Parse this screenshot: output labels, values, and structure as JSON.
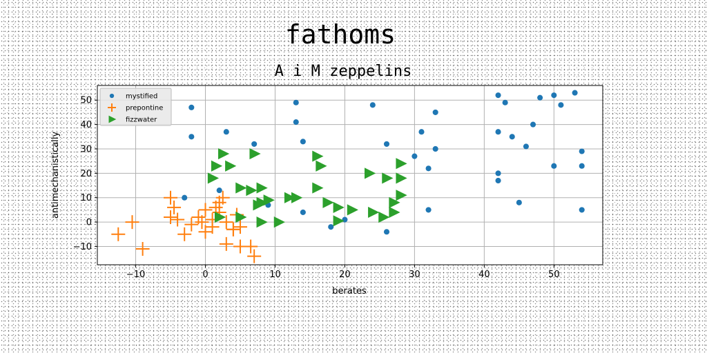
{
  "chart_data": {
    "type": "scatter",
    "title": "fathoms",
    "subtitle": "A i M zeppelins",
    "xlabel": "berates",
    "ylabel": "antimechanistically",
    "xlim": [
      -15.5,
      57
    ],
    "ylim": [
      -17.5,
      56
    ],
    "xticks": [
      -10,
      0,
      10,
      20,
      30,
      40,
      50
    ],
    "yticks": [
      -10,
      0,
      10,
      20,
      30,
      40,
      50
    ],
    "grid": true,
    "legend_position": "upper-left",
    "series": [
      {
        "name": "mystified",
        "marker": "circle",
        "color": "#1f77b4",
        "points": [
          [
            -2,
            47
          ],
          [
            -2,
            35
          ],
          [
            -3,
            10
          ],
          [
            3,
            37
          ],
          [
            2,
            13
          ],
          [
            7,
            32
          ],
          [
            13,
            49
          ],
          [
            13,
            41
          ],
          [
            14,
            33
          ],
          [
            14,
            4
          ],
          [
            18,
            -2
          ],
          [
            24,
            48
          ],
          [
            26,
            32
          ],
          [
            26,
            -4
          ],
          [
            30,
            27
          ],
          [
            31,
            37
          ],
          [
            33,
            45
          ],
          [
            33,
            30
          ],
          [
            32,
            22
          ],
          [
            32,
            5
          ],
          [
            42,
            52
          ],
          [
            43,
            49
          ],
          [
            42,
            37
          ],
          [
            42,
            20
          ],
          [
            42,
            17
          ],
          [
            44,
            35
          ],
          [
            46,
            31
          ],
          [
            47,
            40
          ],
          [
            48,
            51
          ],
          [
            50,
            52
          ],
          [
            51,
            48
          ],
          [
            53,
            53
          ],
          [
            54,
            29
          ],
          [
            54,
            23
          ],
          [
            50,
            23
          ],
          [
            45,
            8
          ],
          [
            54,
            5
          ],
          [
            20,
            1
          ],
          [
            9,
            7
          ]
        ]
      },
      {
        "name": "prepontine",
        "marker": "plus",
        "color": "#ff7f0e",
        "points": [
          [
            -12.5,
            -5
          ],
          [
            -10.5,
            0
          ],
          [
            -9,
            -11
          ],
          [
            -5,
            10
          ],
          [
            -4.5,
            6
          ],
          [
            -5,
            2
          ],
          [
            -4,
            1
          ],
          [
            -3,
            -5
          ],
          [
            -2,
            -1
          ],
          [
            -1,
            2
          ],
          [
            0,
            5
          ],
          [
            0,
            -4
          ],
          [
            1,
            1
          ],
          [
            1,
            -2
          ],
          [
            2,
            8
          ],
          [
            2.5,
            10
          ],
          [
            2,
            4
          ],
          [
            3,
            0
          ],
          [
            3,
            -9
          ],
          [
            4,
            -3
          ],
          [
            4.5,
            3
          ],
          [
            5,
            -2
          ],
          [
            5,
            -10
          ],
          [
            6.5,
            -10
          ],
          [
            7,
            -14
          ],
          [
            1.5,
            6
          ],
          [
            -0.5,
            0
          ],
          [
            4,
            -3
          ]
        ]
      },
      {
        "name": "fizzwater",
        "marker": "triangle-right",
        "color": "#2ca02c",
        "points": [
          [
            1,
            18
          ],
          [
            1.5,
            23
          ],
          [
            2.5,
            28
          ],
          [
            3.5,
            23
          ],
          [
            7,
            28
          ],
          [
            5,
            14
          ],
          [
            6.5,
            13
          ],
          [
            8,
            14
          ],
          [
            8,
            8
          ],
          [
            9,
            9
          ],
          [
            7.5,
            7
          ],
          [
            8,
            0
          ],
          [
            10.5,
            0
          ],
          [
            5,
            2
          ],
          [
            2,
            2
          ],
          [
            12,
            10
          ],
          [
            13,
            10
          ],
          [
            16,
            27
          ],
          [
            16.5,
            23
          ],
          [
            16,
            14
          ],
          [
            17.5,
            8
          ],
          [
            19,
            0.5
          ],
          [
            19,
            6
          ],
          [
            21,
            5
          ],
          [
            23.5,
            20
          ],
          [
            26,
            18
          ],
          [
            28,
            18
          ],
          [
            28,
            24
          ],
          [
            24,
            4
          ],
          [
            25.5,
            2
          ],
          [
            27,
            4
          ],
          [
            27,
            8
          ],
          [
            28,
            11
          ]
        ]
      }
    ]
  }
}
